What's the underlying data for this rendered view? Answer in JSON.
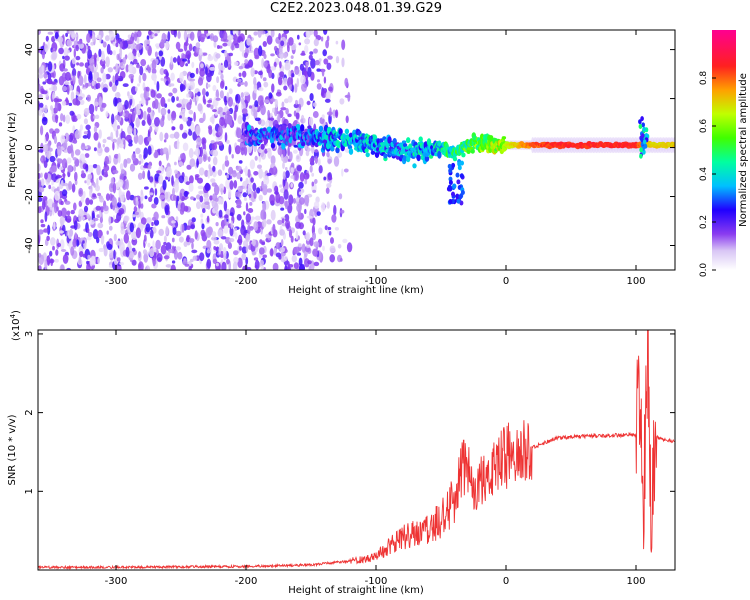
{
  "title": "C2E2.2023.048.01.39.G29",
  "chart_data": [
    {
      "type": "heatmap",
      "xlabel": "Height of straight line (km)",
      "ylabel": "Frequency (Hz)",
      "xlim": [
        -360,
        130
      ],
      "ylim": [
        -50,
        48
      ],
      "x_ticks": [
        "-300",
        "-200",
        "-100",
        "0",
        "100"
      ],
      "x_tick_values": [
        -300,
        -200,
        -100,
        0,
        100
      ],
      "y_ticks": [
        "40",
        "20",
        "0",
        "-20",
        "-40"
      ],
      "y_tick_values": [
        40,
        20,
        0,
        -20,
        -40
      ],
      "colorbar": {
        "label": "Normalized spectral amplitude",
        "range": [
          0.0,
          1.0
        ],
        "ticks": [
          "0.0",
          "0.2",
          "0.4",
          "0.6",
          "0.8"
        ],
        "tick_values": [
          0.0,
          0.2,
          0.4,
          0.6,
          0.8
        ],
        "colormap": [
          "#ffffff",
          "#d9c6f5",
          "#8a3cf0",
          "#5a00e0",
          "#0000ff",
          "#00c0ff",
          "#00ff80",
          "#80ff00",
          "#ffd000",
          "#ff3030",
          "#ff0090"
        ]
      },
      "ridge": {
        "x": [
          -160,
          -140,
          -120,
          -100,
          -80,
          -70,
          -60,
          -50,
          -40,
          -30,
          -20,
          -10,
          0,
          20,
          40,
          60,
          80,
          100,
          110,
          130
        ],
        "frequency": [
          5,
          4,
          3,
          1,
          -1,
          -2,
          -1,
          0,
          -2,
          1,
          2,
          1,
          1,
          1,
          1,
          1,
          1,
          1,
          1,
          1
        ],
        "amplitude": [
          0.25,
          0.3,
          0.35,
          0.35,
          0.3,
          0.35,
          0.35,
          0.4,
          0.45,
          0.5,
          0.55,
          0.6,
          0.65,
          0.8,
          0.85,
          0.85,
          0.85,
          0.85,
          0.7,
          0.7
        ]
      }
    },
    {
      "type": "line",
      "xlabel": "Height of straight line (km)",
      "ylabel": "SNR (10 * v/v)",
      "y_multiplier": "(x10",
      "y_multiplier_exp": "4",
      "y_multiplier_close": ")",
      "xlim": [
        -360,
        130
      ],
      "ylim": [
        0,
        3.05
      ],
      "x_ticks": [
        "-300",
        "-200",
        "-100",
        "0",
        "100"
      ],
      "x_tick_values": [
        -300,
        -200,
        -100,
        0,
        100
      ],
      "y_ticks": [
        "1",
        "2",
        "3"
      ],
      "y_tick_values": [
        1,
        2,
        3
      ],
      "color": "#ee3333",
      "series": [
        {
          "x": [
            -360,
            -300,
            -200,
            -150,
            -120,
            -100,
            -90,
            -80,
            -70,
            -60,
            -50,
            -40,
            -35,
            -30,
            -25,
            -20,
            -15,
            -10,
            -5,
            0,
            10,
            20,
            30,
            40,
            60,
            80,
            100,
            103,
            106,
            109,
            112,
            115,
            120,
            130
          ],
          "y": [
            0.02,
            0.02,
            0.03,
            0.05,
            0.1,
            0.15,
            0.25,
            0.35,
            0.4,
            0.45,
            0.55,
            0.75,
            1.2,
            1.3,
            0.9,
            1.1,
            1.2,
            1.3,
            1.35,
            1.4,
            1.45,
            1.55,
            1.62,
            1.68,
            1.7,
            1.71,
            1.72,
            2.3,
            1.0,
            2.8,
            0.5,
            1.7,
            1.66,
            1.63
          ]
        }
      ]
    }
  ]
}
